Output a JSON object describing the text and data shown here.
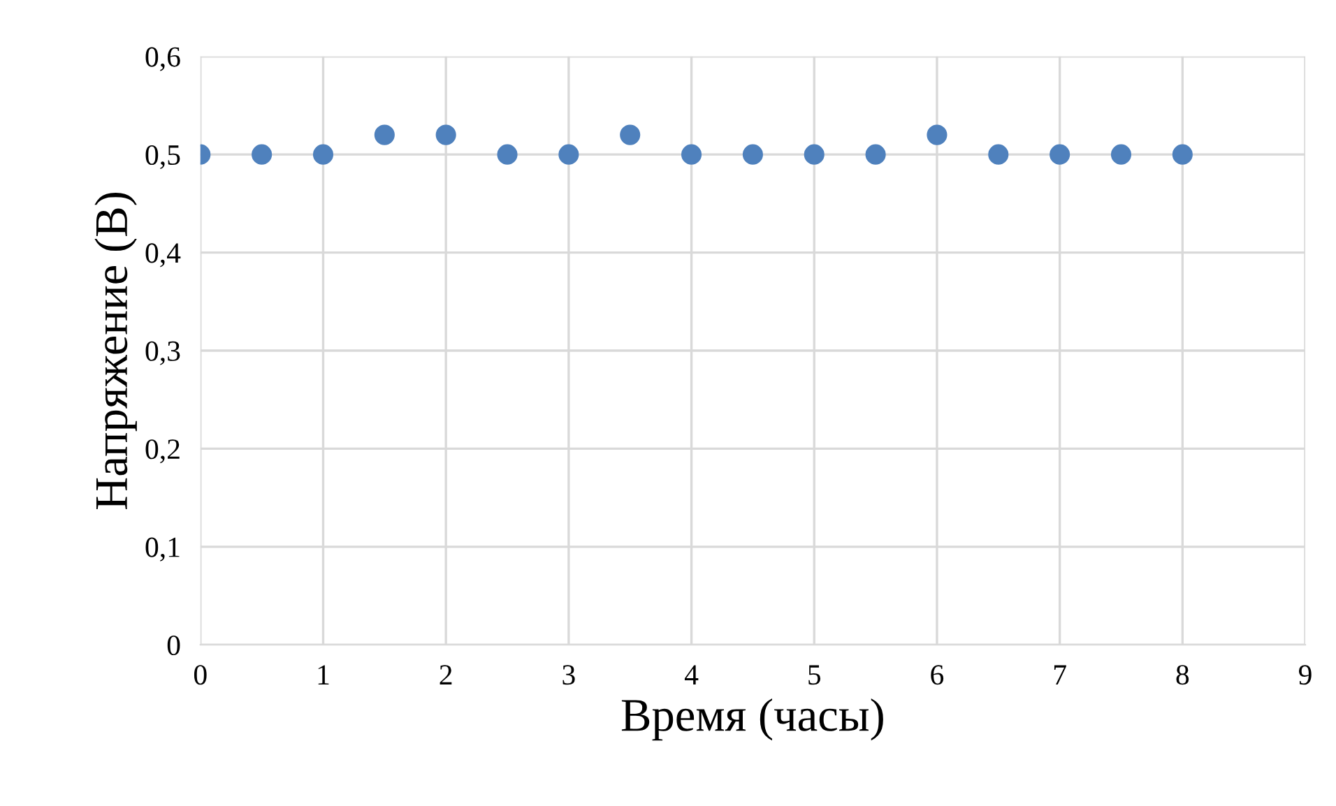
{
  "chart_data": {
    "type": "scatter",
    "xlabel": "Время (часы)",
    "ylabel": "Напряжение (В)",
    "x": [
      0,
      0.5,
      1,
      1.5,
      2,
      2.5,
      3,
      3.5,
      4,
      4.5,
      5,
      5.5,
      6,
      6.5,
      7,
      7.5,
      8
    ],
    "series": [
      {
        "color": "#4f81bd",
        "values": [
          0.5,
          0.5,
          0.5,
          0.52,
          0.52,
          0.5,
          0.5,
          0.52,
          0.5,
          0.5,
          0.5,
          0.5,
          0.52,
          0.5,
          0.5,
          0.5,
          0.5
        ]
      }
    ],
    "xlim": [
      0,
      9
    ],
    "xticks": [
      0,
      1,
      2,
      3,
      4,
      5,
      6,
      7,
      8,
      9
    ],
    "ylim": [
      0,
      0.6
    ],
    "yticks": [
      0,
      {
        "value": 0.1,
        "label": "0,1"
      },
      {
        "value": 0.2,
        "label": "0,2"
      },
      {
        "value": 0.3,
        "label": "0,3"
      },
      {
        "value": 0.4,
        "label": "0,4"
      },
      {
        "value": 0.5,
        "label": "0,5"
      },
      {
        "value": 0.6,
        "label": "0,6"
      }
    ],
    "grid": true,
    "marker": "circle",
    "legend": false
  }
}
